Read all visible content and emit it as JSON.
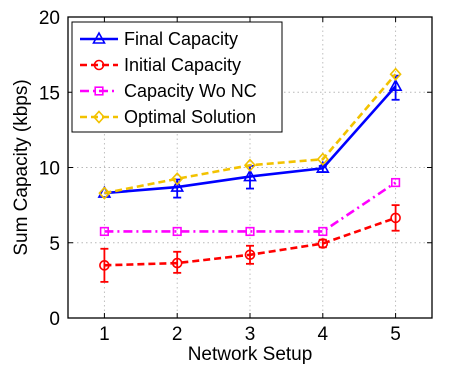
{
  "chart_data": {
    "type": "line",
    "xlabel": "Network Setup",
    "ylabel": "Sum Capacity (kbps)",
    "x": [
      1,
      2,
      3,
      4,
      5
    ],
    "xlim": [
      0.5,
      5.5
    ],
    "ylim": [
      0,
      20
    ],
    "xticks": [
      "1",
      "2",
      "3",
      "4",
      "5"
    ],
    "yticks": [
      "0",
      "5",
      "10",
      "15",
      "20"
    ],
    "grid": true,
    "legend_position": "top-left",
    "series": [
      {
        "name": "Final Capacity",
        "values": [
          8.3,
          8.7,
          9.4,
          9.95,
          15.4
        ],
        "err_low": [
          8.3,
          8.0,
          8.6,
          9.7,
          14.5
        ],
        "err_high": [
          8.3,
          9.2,
          10.1,
          10.1,
          16.1
        ],
        "color": "#0000ff",
        "line": "solid",
        "marker": "triangle"
      },
      {
        "name": "Initial Capacity",
        "values": [
          3.5,
          3.65,
          4.2,
          4.95,
          6.65
        ],
        "err_low": [
          2.4,
          3.0,
          3.6,
          4.7,
          5.8
        ],
        "err_high": [
          4.6,
          4.4,
          4.8,
          5.2,
          7.5
        ],
        "color": "#ff0000",
        "line": "dashed",
        "marker": "circle"
      },
      {
        "name": "Capacity Wo NC",
        "values": [
          5.75,
          5.75,
          5.75,
          5.75,
          9.0
        ],
        "color": "#ff00ff",
        "line": "dashdot",
        "marker": "square"
      },
      {
        "name": "Optimal Solution",
        "values": [
          8.3,
          9.25,
          10.15,
          10.55,
          16.2
        ],
        "color": "#f2c200",
        "line": "dashed",
        "marker": "diamond"
      }
    ]
  }
}
